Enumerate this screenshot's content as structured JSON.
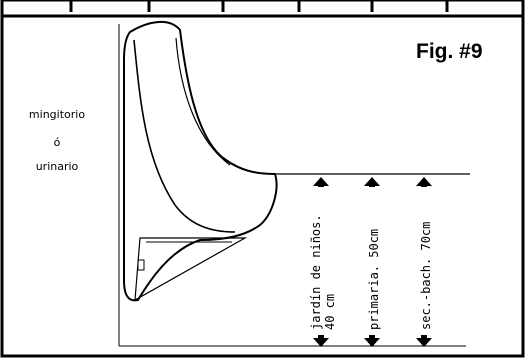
{
  "figure": {
    "title": "Fig. #9",
    "side_label_lines": [
      "mingitorio",
      "ó",
      "urinario"
    ],
    "heights": [
      {
        "label_lines": [
          "jardín de niños.",
          "40 cm"
        ]
      },
      {
        "label_lines": [
          "primaria. 50cm"
        ]
      },
      {
        "label_lines": [
          "sec.-bach. 70cm"
        ]
      }
    ]
  }
}
